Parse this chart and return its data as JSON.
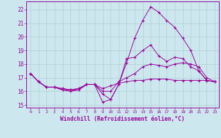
{
  "xlabel": "Windchill (Refroidissement éolien,°C)",
  "bg_color": "#cce8ee",
  "line_color": "#990099",
  "grid_color": "#b0cdd4",
  "xlim": [
    -0.5,
    23.5
  ],
  "ylim": [
    14.8,
    22.6
  ],
  "yticks": [
    15,
    16,
    17,
    18,
    19,
    20,
    21,
    22
  ],
  "xticks": [
    0,
    1,
    2,
    3,
    4,
    5,
    6,
    7,
    8,
    9,
    10,
    11,
    12,
    13,
    14,
    15,
    16,
    17,
    18,
    19,
    20,
    21,
    22,
    23
  ],
  "series": [
    {
      "x": [
        0,
        1,
        2,
        3,
        4,
        5,
        6,
        7,
        8,
        9,
        10,
        11,
        12,
        13,
        14,
        15,
        16,
        17,
        18,
        19,
        20,
        21,
        22,
        23
      ],
      "y": [
        17.3,
        16.7,
        16.3,
        16.3,
        16.1,
        16.0,
        16.1,
        16.5,
        16.5,
        15.2,
        15.4,
        16.5,
        18.1,
        19.9,
        21.2,
        22.2,
        21.8,
        21.2,
        20.7,
        19.9,
        19.0,
        17.5,
        16.8,
        16.7
      ]
    },
    {
      "x": [
        0,
        1,
        2,
        3,
        4,
        5,
        6,
        7,
        8,
        9,
        10,
        11,
        12,
        13,
        14,
        15,
        16,
        17,
        18,
        19,
        20,
        21,
        22,
        23
      ],
      "y": [
        17.3,
        16.7,
        16.3,
        16.3,
        16.1,
        16.1,
        16.1,
        16.5,
        16.5,
        15.8,
        15.4,
        16.5,
        18.4,
        18.5,
        19.0,
        19.4,
        18.6,
        18.2,
        18.5,
        18.4,
        17.8,
        17.5,
        16.8,
        16.7
      ]
    },
    {
      "x": [
        0,
        1,
        2,
        3,
        4,
        5,
        6,
        7,
        8,
        9,
        10,
        11,
        12,
        13,
        14,
        15,
        16,
        17,
        18,
        19,
        20,
        21,
        22,
        23
      ],
      "y": [
        17.3,
        16.7,
        16.3,
        16.3,
        16.2,
        16.1,
        16.2,
        16.5,
        16.5,
        16.0,
        16.0,
        16.7,
        17.0,
        17.3,
        17.8,
        18.0,
        17.9,
        17.8,
        18.0,
        18.1,
        18.0,
        17.8,
        17.0,
        16.7
      ]
    },
    {
      "x": [
        0,
        1,
        2,
        3,
        4,
        5,
        6,
        7,
        8,
        9,
        10,
        11,
        12,
        13,
        14,
        15,
        16,
        17,
        18,
        19,
        20,
        21,
        22,
        23
      ],
      "y": [
        17.3,
        16.7,
        16.3,
        16.3,
        16.2,
        16.1,
        16.2,
        16.5,
        16.5,
        16.2,
        16.4,
        16.6,
        16.7,
        16.8,
        16.8,
        16.9,
        16.9,
        16.9,
        16.8,
        16.8,
        16.8,
        16.8,
        16.8,
        16.7
      ]
    }
  ]
}
